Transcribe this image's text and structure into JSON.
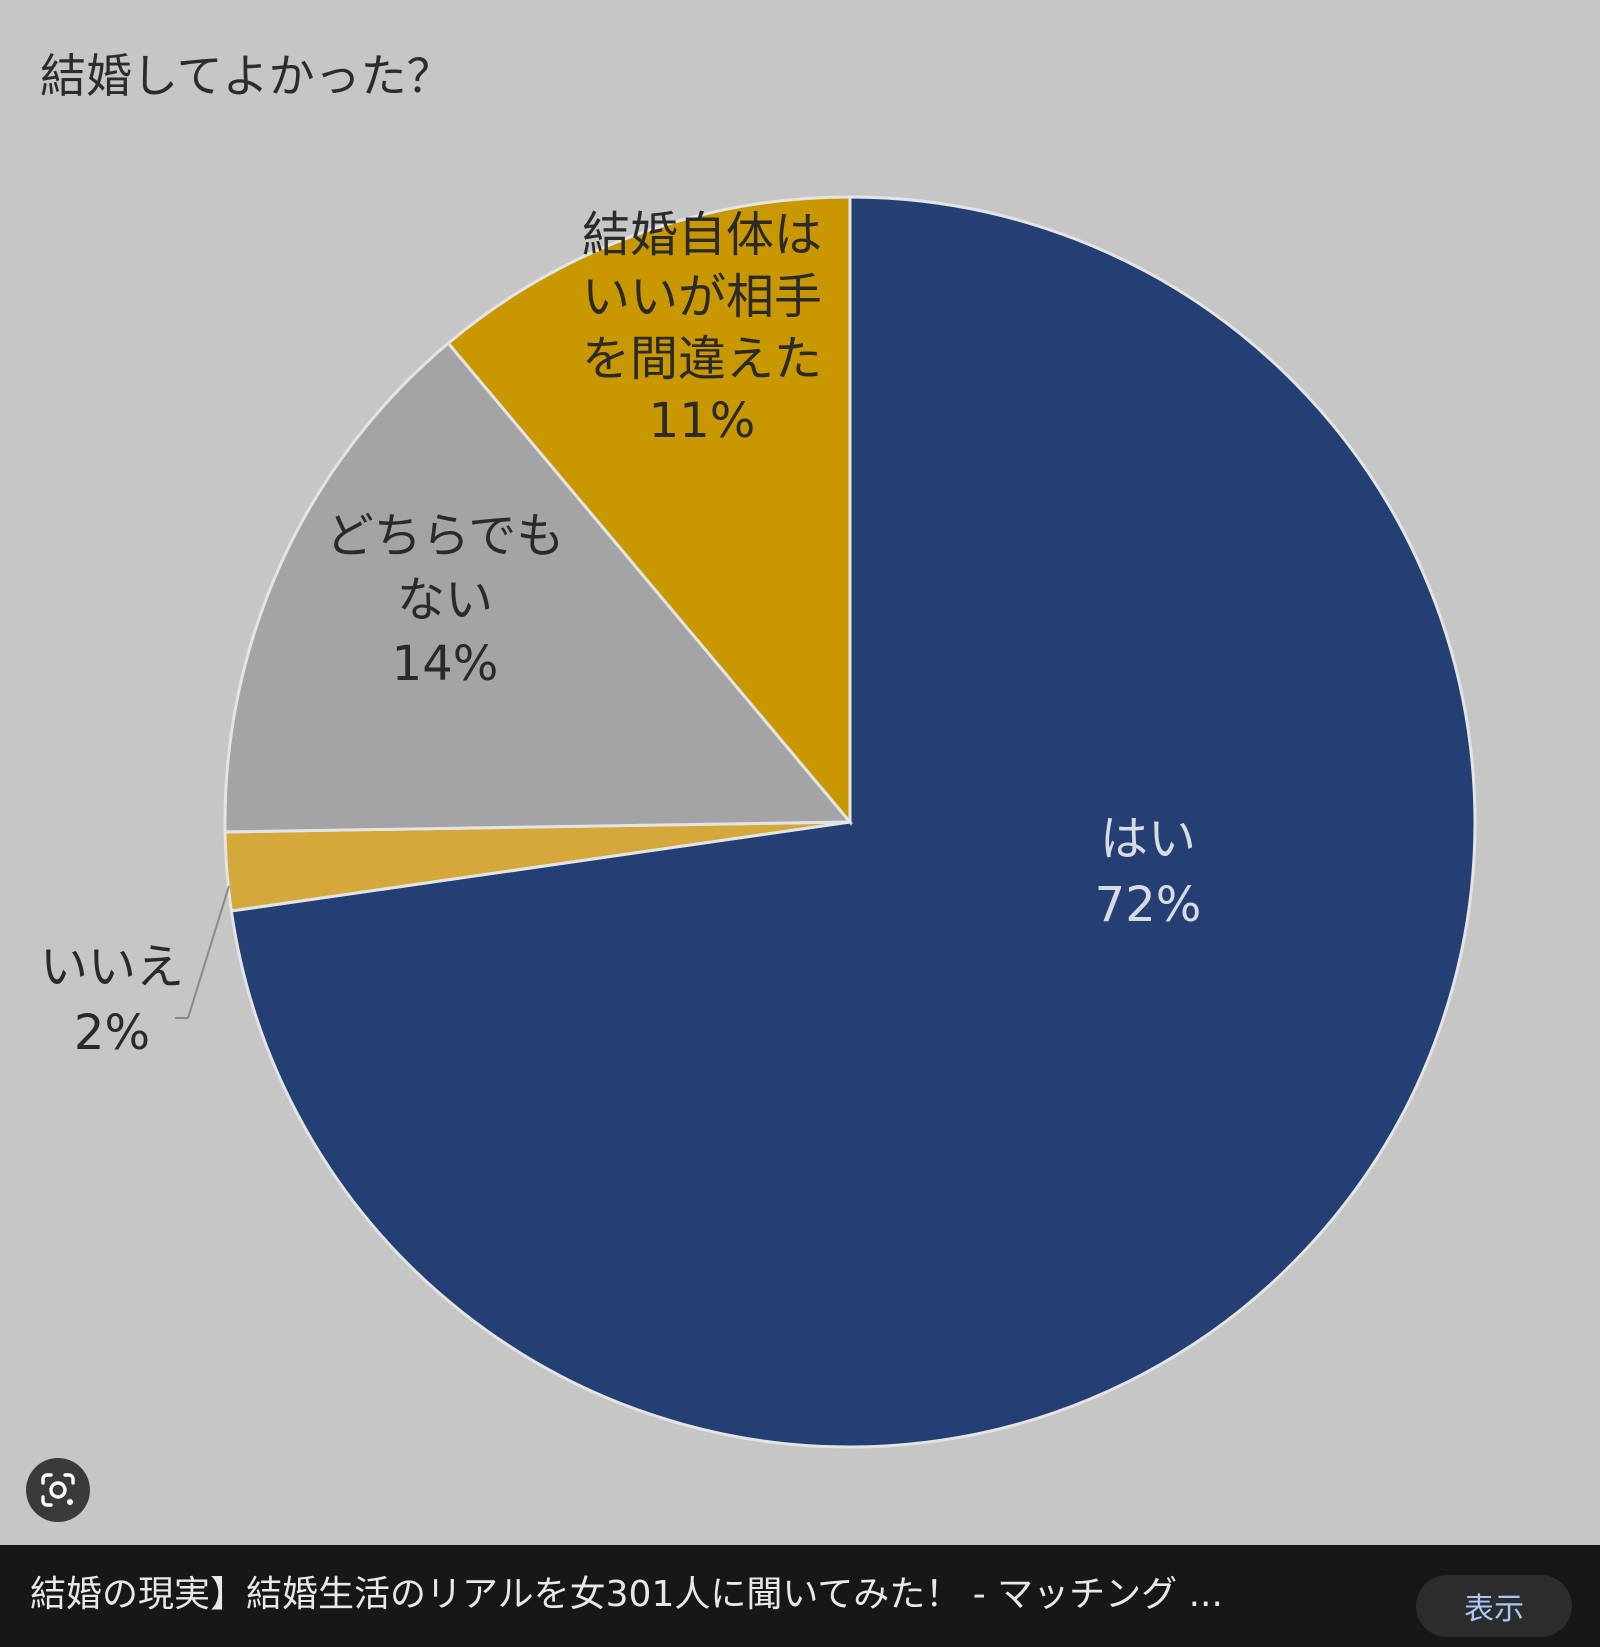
{
  "chart_data": {
    "type": "pie",
    "title": "結婚してよかった？",
    "slices": [
      {
        "lines": [
          "はい",
          "72%"
        ],
        "value": 72,
        "color": "#243f73",
        "label_tone": "light"
      },
      {
        "lines": [
          "いいえ",
          "2%"
        ],
        "value": 2,
        "color": "#d4a83a",
        "label_tone": "dark"
      },
      {
        "lines": [
          "どちらでも",
          "ない",
          "14%"
        ],
        "value": 14,
        "color": "#a4a4a6",
        "label_tone": "dark"
      },
      {
        "lines": [
          "結婚自体は",
          "いいが相手",
          "を間違えた",
          "11%"
        ],
        "value": 11,
        "color": "#c99800",
        "label_tone": "dark"
      }
    ],
    "start": "12 o'clock",
    "direction": "clockwise",
    "legend": "none"
  },
  "caption": {
    "text": "結婚の現実】結婚生活のリアルを女301人に聞いてみた！ - マッチング ...",
    "visit_label": "表示"
  },
  "icons": {
    "lens": "lens-search-icon"
  }
}
